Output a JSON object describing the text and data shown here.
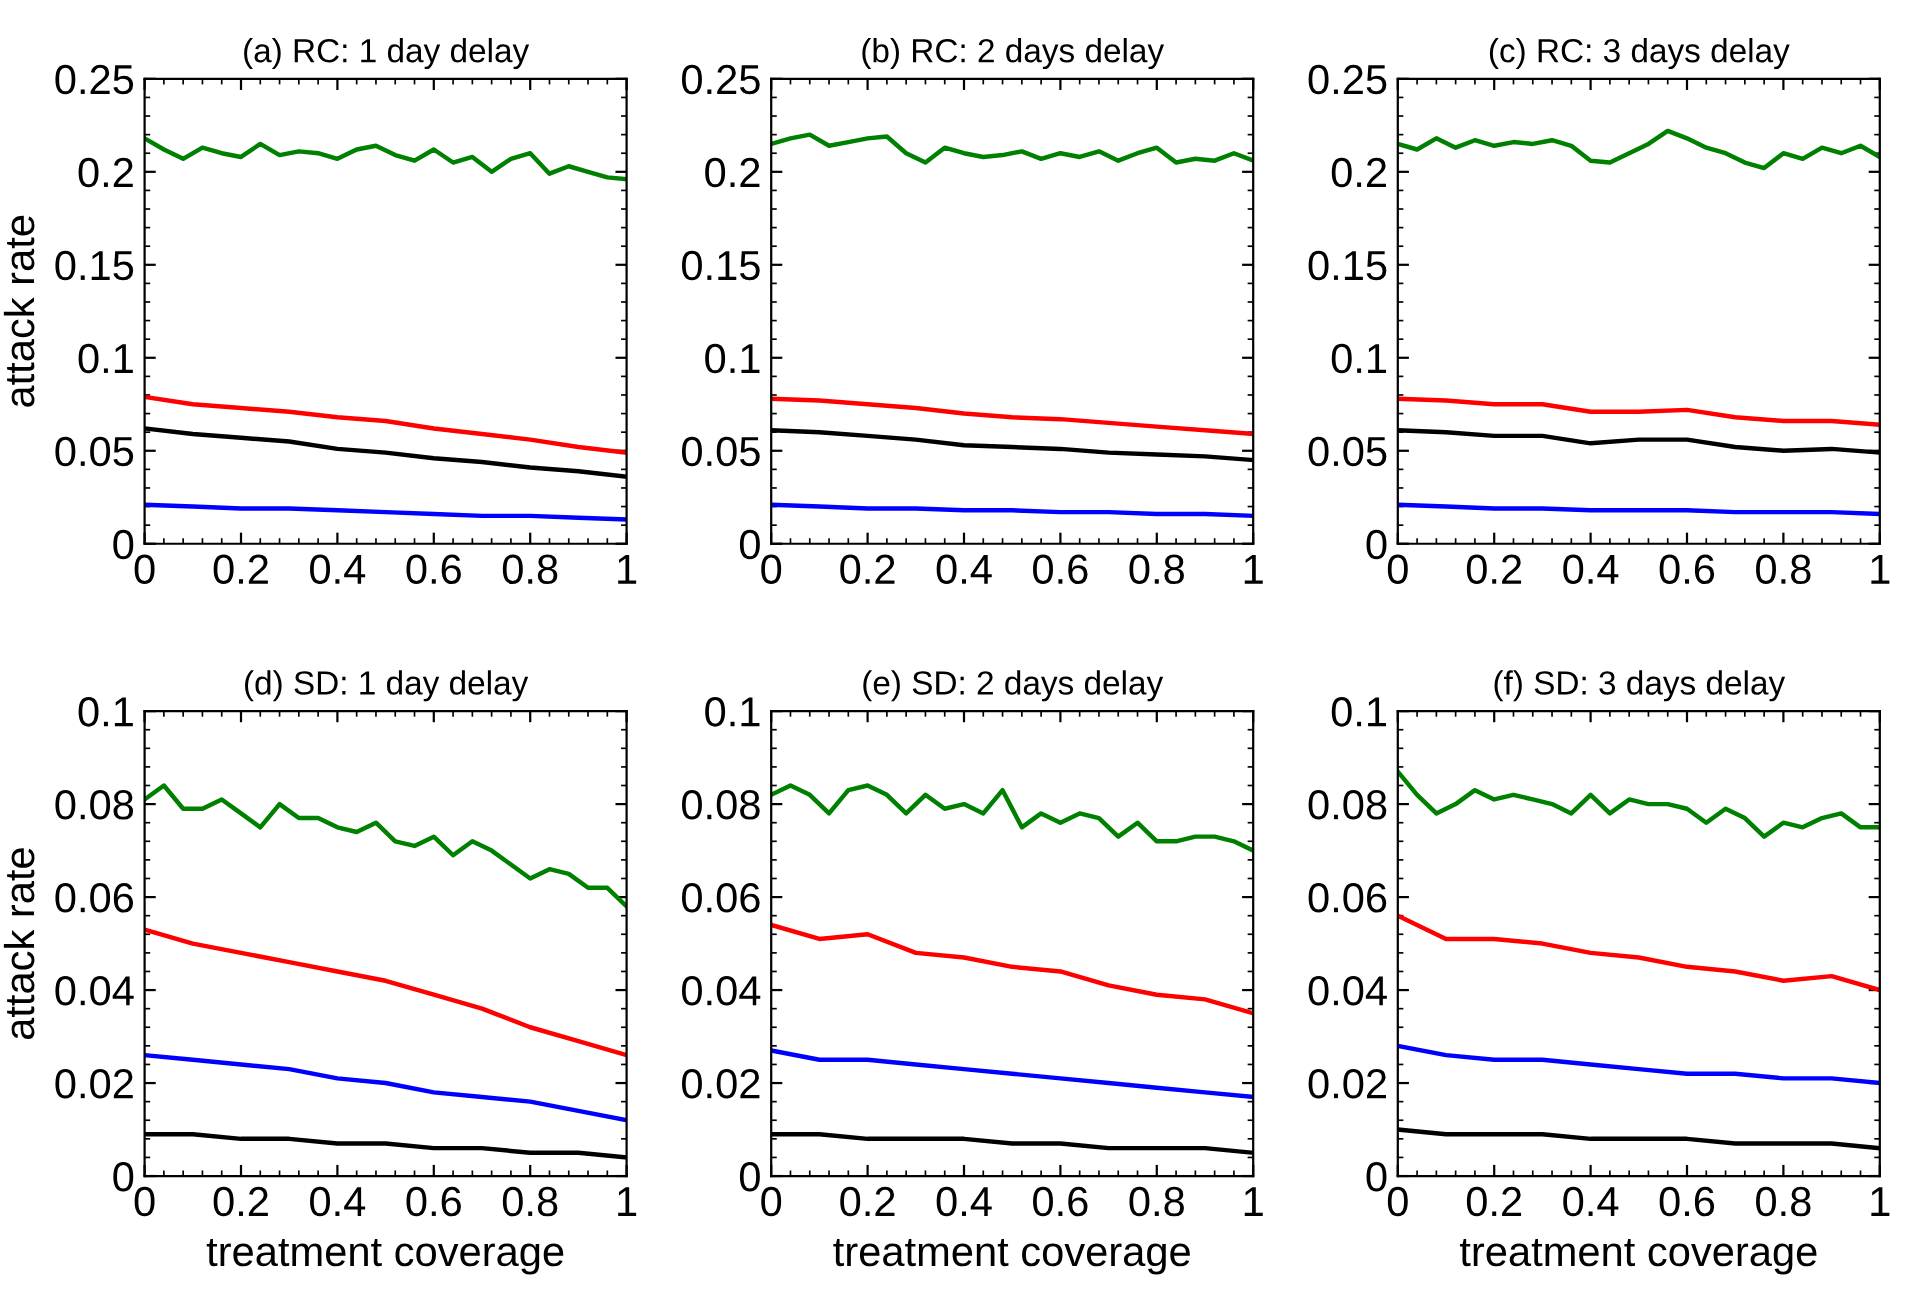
{
  "chart_data": [
    {
      "type": "line",
      "title": "(a) RC: 1 day delay",
      "ylabel": "attack rate",
      "xlim": [
        0,
        1
      ],
      "ylim": [
        0,
        0.25
      ],
      "xticks": [
        0,
        0.2,
        0.4,
        0.6,
        0.8,
        1
      ],
      "yticks": [
        0,
        0.05,
        0.1,
        0.15,
        0.2,
        0.25
      ],
      "grid": false,
      "marker": "none",
      "line_style": "solid",
      "x": [
        0,
        0.04,
        0.08,
        0.12,
        0.16,
        0.2,
        0.24,
        0.28,
        0.32,
        0.36,
        0.4,
        0.44,
        0.48,
        0.52,
        0.56,
        0.6,
        0.64,
        0.68,
        0.72,
        0.76,
        0.8,
        0.84,
        0.88,
        0.92,
        0.96,
        1
      ],
      "series": [
        {
          "color": "#008000",
          "values": [
            0.218,
            0.212,
            0.207,
            0.213,
            0.21,
            0.208,
            0.215,
            0.209,
            0.211,
            0.21,
            0.207,
            0.212,
            0.214,
            0.209,
            0.206,
            0.212,
            0.205,
            0.208,
            0.2,
            0.207,
            0.21,
            0.199,
            0.203,
            0.2,
            0.197,
            0.196
          ]
        },
        {
          "color": "#ff0000",
          "x": [
            0,
            0.1,
            0.2,
            0.3,
            0.4,
            0.5,
            0.6,
            0.7,
            0.8,
            0.9,
            1
          ],
          "values": [
            0.079,
            0.075,
            0.073,
            0.071,
            0.068,
            0.066,
            0.062,
            0.059,
            0.056,
            0.052,
            0.049
          ]
        },
        {
          "color": "#000000",
          "x": [
            0,
            0.1,
            0.2,
            0.3,
            0.4,
            0.5,
            0.6,
            0.7,
            0.8,
            0.9,
            1
          ],
          "values": [
            0.062,
            0.059,
            0.057,
            0.055,
            0.051,
            0.049,
            0.046,
            0.044,
            0.041,
            0.039,
            0.036
          ]
        },
        {
          "color": "#0000ff",
          "x": [
            0,
            0.1,
            0.2,
            0.3,
            0.4,
            0.5,
            0.6,
            0.7,
            0.8,
            0.9,
            1
          ],
          "values": [
            0.021,
            0.02,
            0.019,
            0.019,
            0.018,
            0.017,
            0.016,
            0.015,
            0.015,
            0.014,
            0.013
          ]
        }
      ]
    },
    {
      "type": "line",
      "title": "(b) RC: 2 days delay",
      "xlim": [
        0,
        1
      ],
      "ylim": [
        0,
        0.25
      ],
      "xticks": [
        0,
        0.2,
        0.4,
        0.6,
        0.8,
        1
      ],
      "yticks": [
        0,
        0.05,
        0.1,
        0.15,
        0.2,
        0.25
      ],
      "grid": false,
      "marker": "none",
      "line_style": "solid",
      "x": [
        0,
        0.04,
        0.08,
        0.12,
        0.16,
        0.2,
        0.24,
        0.28,
        0.32,
        0.36,
        0.4,
        0.44,
        0.48,
        0.52,
        0.56,
        0.6,
        0.64,
        0.68,
        0.72,
        0.76,
        0.8,
        0.84,
        0.88,
        0.92,
        0.96,
        1
      ],
      "series": [
        {
          "color": "#008000",
          "values": [
            0.215,
            0.218,
            0.22,
            0.214,
            0.216,
            0.218,
            0.219,
            0.21,
            0.205,
            0.213,
            0.21,
            0.208,
            0.209,
            0.211,
            0.207,
            0.21,
            0.208,
            0.211,
            0.206,
            0.21,
            0.213,
            0.205,
            0.207,
            0.206,
            0.21,
            0.206
          ]
        },
        {
          "color": "#ff0000",
          "x": [
            0,
            0.1,
            0.2,
            0.3,
            0.4,
            0.5,
            0.6,
            0.7,
            0.8,
            0.9,
            1
          ],
          "values": [
            0.078,
            0.077,
            0.075,
            0.073,
            0.07,
            0.068,
            0.067,
            0.065,
            0.063,
            0.061,
            0.059
          ]
        },
        {
          "color": "#000000",
          "x": [
            0,
            0.1,
            0.2,
            0.3,
            0.4,
            0.5,
            0.6,
            0.7,
            0.8,
            0.9,
            1
          ],
          "values": [
            0.061,
            0.06,
            0.058,
            0.056,
            0.053,
            0.052,
            0.051,
            0.049,
            0.048,
            0.047,
            0.045
          ]
        },
        {
          "color": "#0000ff",
          "x": [
            0,
            0.1,
            0.2,
            0.3,
            0.4,
            0.5,
            0.6,
            0.7,
            0.8,
            0.9,
            1
          ],
          "values": [
            0.021,
            0.02,
            0.019,
            0.019,
            0.018,
            0.018,
            0.017,
            0.017,
            0.016,
            0.016,
            0.015
          ]
        }
      ]
    },
    {
      "type": "line",
      "title": "(c) RC: 3 days delay",
      "xlim": [
        0,
        1
      ],
      "ylim": [
        0,
        0.25
      ],
      "xticks": [
        0,
        0.2,
        0.4,
        0.6,
        0.8,
        1
      ],
      "yticks": [
        0,
        0.05,
        0.1,
        0.15,
        0.2,
        0.25
      ],
      "grid": false,
      "marker": "none",
      "line_style": "solid",
      "x": [
        0,
        0.04,
        0.08,
        0.12,
        0.16,
        0.2,
        0.24,
        0.28,
        0.32,
        0.36,
        0.4,
        0.44,
        0.48,
        0.52,
        0.56,
        0.6,
        0.64,
        0.68,
        0.72,
        0.76,
        0.8,
        0.84,
        0.88,
        0.92,
        0.96,
        1
      ],
      "series": [
        {
          "color": "#008000",
          "values": [
            0.215,
            0.212,
            0.218,
            0.213,
            0.217,
            0.214,
            0.216,
            0.215,
            0.217,
            0.214,
            0.206,
            0.205,
            0.21,
            0.215,
            0.222,
            0.218,
            0.213,
            0.21,
            0.205,
            0.202,
            0.21,
            0.207,
            0.213,
            0.21,
            0.214,
            0.208
          ]
        },
        {
          "color": "#ff0000",
          "x": [
            0,
            0.1,
            0.2,
            0.3,
            0.4,
            0.5,
            0.6,
            0.7,
            0.8,
            0.9,
            1
          ],
          "values": [
            0.078,
            0.077,
            0.075,
            0.075,
            0.071,
            0.071,
            0.072,
            0.068,
            0.066,
            0.066,
            0.064
          ]
        },
        {
          "color": "#000000",
          "x": [
            0,
            0.1,
            0.2,
            0.3,
            0.4,
            0.5,
            0.6,
            0.7,
            0.8,
            0.9,
            1
          ],
          "values": [
            0.061,
            0.06,
            0.058,
            0.058,
            0.054,
            0.056,
            0.056,
            0.052,
            0.05,
            0.051,
            0.049
          ]
        },
        {
          "color": "#0000ff",
          "x": [
            0,
            0.1,
            0.2,
            0.3,
            0.4,
            0.5,
            0.6,
            0.7,
            0.8,
            0.9,
            1
          ],
          "values": [
            0.021,
            0.02,
            0.019,
            0.019,
            0.018,
            0.018,
            0.018,
            0.017,
            0.017,
            0.017,
            0.016
          ]
        }
      ]
    },
    {
      "type": "line",
      "title": "(d) SD: 1 day delay",
      "xlabel": "treatment coverage",
      "ylabel": "attack rate",
      "xlim": [
        0,
        1
      ],
      "ylim": [
        0,
        0.1
      ],
      "xticks": [
        0,
        0.2,
        0.4,
        0.6,
        0.8,
        1
      ],
      "yticks": [
        0,
        0.02,
        0.04,
        0.06,
        0.08,
        0.1
      ],
      "grid": false,
      "marker": "none",
      "line_style": "solid",
      "x": [
        0,
        0.04,
        0.08,
        0.12,
        0.16,
        0.2,
        0.24,
        0.28,
        0.32,
        0.36,
        0.4,
        0.44,
        0.48,
        0.52,
        0.56,
        0.6,
        0.64,
        0.68,
        0.72,
        0.76,
        0.8,
        0.84,
        0.88,
        0.92,
        0.96,
        1
      ],
      "series": [
        {
          "color": "#008000",
          "values": [
            0.081,
            0.084,
            0.079,
            0.079,
            0.081,
            0.078,
            0.075,
            0.08,
            0.077,
            0.077,
            0.075,
            0.074,
            0.076,
            0.072,
            0.071,
            0.073,
            0.069,
            0.072,
            0.07,
            0.067,
            0.064,
            0.066,
            0.065,
            0.062,
            0.062,
            0.058
          ]
        },
        {
          "color": "#ff0000",
          "x": [
            0,
            0.1,
            0.2,
            0.3,
            0.4,
            0.5,
            0.6,
            0.7,
            0.8,
            0.9,
            1
          ],
          "values": [
            0.053,
            0.05,
            0.048,
            0.046,
            0.044,
            0.042,
            0.039,
            0.036,
            0.032,
            0.029,
            0.026
          ]
        },
        {
          "color": "#0000ff",
          "x": [
            0,
            0.1,
            0.2,
            0.3,
            0.4,
            0.5,
            0.6,
            0.7,
            0.8,
            0.9,
            1
          ],
          "values": [
            0.026,
            0.025,
            0.024,
            0.023,
            0.021,
            0.02,
            0.018,
            0.017,
            0.016,
            0.014,
            0.012
          ]
        },
        {
          "color": "#000000",
          "x": [
            0,
            0.1,
            0.2,
            0.3,
            0.4,
            0.5,
            0.6,
            0.7,
            0.8,
            0.9,
            1
          ],
          "values": [
            0.009,
            0.009,
            0.008,
            0.008,
            0.007,
            0.007,
            0.006,
            0.006,
            0.005,
            0.005,
            0.004
          ]
        }
      ]
    },
    {
      "type": "line",
      "title": "(e) SD: 2 days delay",
      "xlabel": "treatment coverage",
      "xlim": [
        0,
        1
      ],
      "ylim": [
        0,
        0.1
      ],
      "xticks": [
        0,
        0.2,
        0.4,
        0.6,
        0.8,
        1
      ],
      "yticks": [
        0,
        0.02,
        0.04,
        0.06,
        0.08,
        0.1
      ],
      "grid": false,
      "marker": "none",
      "line_style": "solid",
      "x": [
        0,
        0.04,
        0.08,
        0.12,
        0.16,
        0.2,
        0.24,
        0.28,
        0.32,
        0.36,
        0.4,
        0.44,
        0.48,
        0.52,
        0.56,
        0.6,
        0.64,
        0.68,
        0.72,
        0.76,
        0.8,
        0.84,
        0.88,
        0.92,
        0.96,
        1
      ],
      "series": [
        {
          "color": "#008000",
          "values": [
            0.082,
            0.084,
            0.082,
            0.078,
            0.083,
            0.084,
            0.082,
            0.078,
            0.082,
            0.079,
            0.08,
            0.078,
            0.083,
            0.075,
            0.078,
            0.076,
            0.078,
            0.077,
            0.073,
            0.076,
            0.072,
            0.072,
            0.073,
            0.073,
            0.072,
            0.07
          ]
        },
        {
          "color": "#ff0000",
          "x": [
            0,
            0.1,
            0.2,
            0.3,
            0.4,
            0.5,
            0.6,
            0.7,
            0.8,
            0.9,
            1
          ],
          "values": [
            0.054,
            0.051,
            0.052,
            0.048,
            0.047,
            0.045,
            0.044,
            0.041,
            0.039,
            0.038,
            0.035
          ]
        },
        {
          "color": "#0000ff",
          "x": [
            0,
            0.1,
            0.2,
            0.3,
            0.4,
            0.5,
            0.6,
            0.7,
            0.8,
            0.9,
            1
          ],
          "values": [
            0.027,
            0.025,
            0.025,
            0.024,
            0.023,
            0.022,
            0.021,
            0.02,
            0.019,
            0.018,
            0.017
          ]
        },
        {
          "color": "#000000",
          "x": [
            0,
            0.1,
            0.2,
            0.3,
            0.4,
            0.5,
            0.6,
            0.7,
            0.8,
            0.9,
            1
          ],
          "values": [
            0.009,
            0.009,
            0.008,
            0.008,
            0.008,
            0.007,
            0.007,
            0.006,
            0.006,
            0.006,
            0.005
          ]
        }
      ]
    },
    {
      "type": "line",
      "title": "(f) SD: 3 days delay",
      "xlabel": "treatment coverage",
      "xlim": [
        0,
        1
      ],
      "ylim": [
        0,
        0.1
      ],
      "xticks": [
        0,
        0.2,
        0.4,
        0.6,
        0.8,
        1
      ],
      "yticks": [
        0,
        0.02,
        0.04,
        0.06,
        0.08,
        0.1
      ],
      "grid": false,
      "marker": "none",
      "line_style": "solid",
      "x": [
        0,
        0.04,
        0.08,
        0.12,
        0.16,
        0.2,
        0.24,
        0.28,
        0.32,
        0.36,
        0.4,
        0.44,
        0.48,
        0.52,
        0.56,
        0.6,
        0.64,
        0.68,
        0.72,
        0.76,
        0.8,
        0.84,
        0.88,
        0.92,
        0.96,
        1
      ],
      "series": [
        {
          "color": "#008000",
          "values": [
            0.087,
            0.082,
            0.078,
            0.08,
            0.083,
            0.081,
            0.082,
            0.081,
            0.08,
            0.078,
            0.082,
            0.078,
            0.081,
            0.08,
            0.08,
            0.079,
            0.076,
            0.079,
            0.077,
            0.073,
            0.076,
            0.075,
            0.077,
            0.078,
            0.075,
            0.075
          ]
        },
        {
          "color": "#ff0000",
          "x": [
            0,
            0.1,
            0.2,
            0.3,
            0.4,
            0.5,
            0.6,
            0.7,
            0.8,
            0.9,
            1
          ],
          "values": [
            0.056,
            0.051,
            0.051,
            0.05,
            0.048,
            0.047,
            0.045,
            0.044,
            0.042,
            0.043,
            0.04
          ]
        },
        {
          "color": "#0000ff",
          "x": [
            0,
            0.1,
            0.2,
            0.3,
            0.4,
            0.5,
            0.6,
            0.7,
            0.8,
            0.9,
            1
          ],
          "values": [
            0.028,
            0.026,
            0.025,
            0.025,
            0.024,
            0.023,
            0.022,
            0.022,
            0.021,
            0.021,
            0.02
          ]
        },
        {
          "color": "#000000",
          "x": [
            0,
            0.1,
            0.2,
            0.3,
            0.4,
            0.5,
            0.6,
            0.7,
            0.8,
            0.9,
            1
          ],
          "values": [
            0.01,
            0.009,
            0.009,
            0.009,
            0.008,
            0.008,
            0.008,
            0.007,
            0.007,
            0.007,
            0.006
          ]
        }
      ]
    }
  ]
}
